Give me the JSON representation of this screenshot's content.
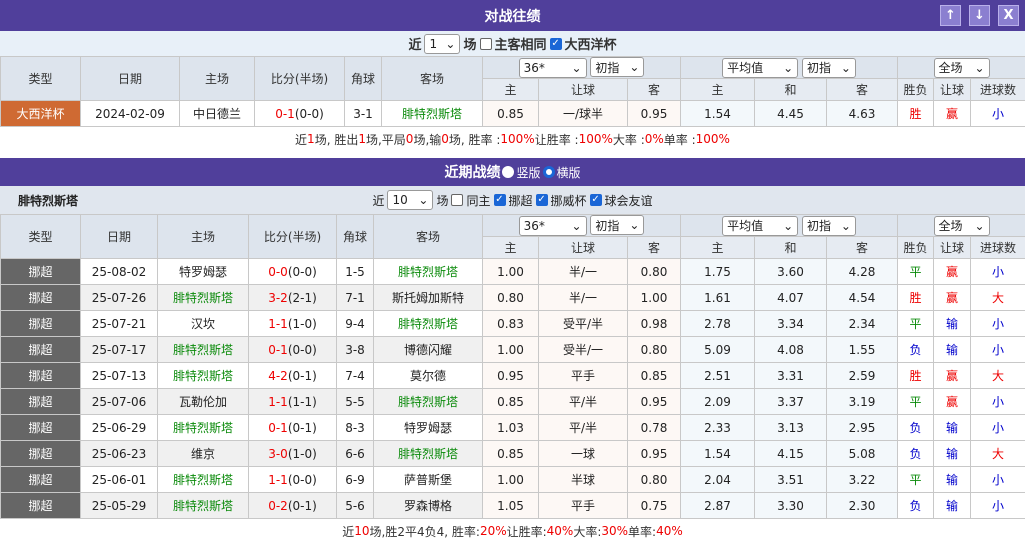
{
  "h2h": {
    "title": "对战往绩",
    "btn_up": "↑",
    "btn_down": "↓",
    "btn_close": "X",
    "filter": {
      "prefix": "近",
      "count": "1",
      "suffix": "场",
      "same_home": "主客相同",
      "same_home_checked": false,
      "league": "大西洋杯",
      "league_checked": true
    },
    "headers": {
      "type": "类型",
      "date": "日期",
      "home": "主场",
      "score": "比分(半场)",
      "corner": "角球",
      "away": "客场",
      "company": "36*",
      "asia_mode": "初指",
      "euro_company": "平均值",
      "euro_mode": "初指",
      "scope": "全场",
      "a_home": "主",
      "a_line": "让球",
      "a_away": "客",
      "e_home": "主",
      "e_draw": "和",
      "e_away": "客",
      "result": "胜负",
      "handicap": "让球",
      "goals": "进球数"
    },
    "rows": [
      {
        "type": "大西洋杯",
        "date": "2024-02-09",
        "home": "中日德兰",
        "score": "0-1",
        "half": "(0-0)",
        "corner": "3-1",
        "away": "腓特烈斯塔",
        "ah": "0.85",
        "line": "一/球半",
        "aa": "0.95",
        "eh": "1.54",
        "ed": "4.45",
        "ea": "4.63",
        "res": "胜",
        "hc": "赢",
        "goal": "小"
      }
    ],
    "summary": [
      [
        "近 ",
        ""
      ],
      [
        "1",
        "r"
      ],
      [
        " 场, 胜出 ",
        ""
      ],
      [
        "1",
        "r"
      ],
      [
        " 场,平局 ",
        ""
      ],
      [
        "0",
        "r"
      ],
      [
        " 场,输 ",
        ""
      ],
      [
        "0",
        "r"
      ],
      [
        " 场, 胜率 : ",
        ""
      ],
      [
        "100%",
        "r"
      ],
      [
        " 让胜率 : ",
        ""
      ],
      [
        "100%",
        "r"
      ],
      [
        " 大率 : ",
        ""
      ],
      [
        "0%",
        "r"
      ],
      [
        " 单率 : ",
        ""
      ],
      [
        "100%",
        "r"
      ]
    ]
  },
  "recent": {
    "title": "近期战绩",
    "opt_vertical": "竖版",
    "opt_horizontal": "横版",
    "selected": "横版",
    "team": "腓特烈斯塔",
    "filter": {
      "prefix": "近",
      "count": "10",
      "suffix": "场",
      "same_home": "同主",
      "same_home_checked": false,
      "c1": "挪超",
      "c2": "挪威杯",
      "c3": "球会友谊"
    },
    "rows": [
      {
        "type": "挪超",
        "date": "25-08-02",
        "home": "特罗姆瑟",
        "score": "0-0",
        "half": "(0-0)",
        "corner": "1-5",
        "away": "腓特烈斯塔",
        "ah": "1.00",
        "line": "半/一",
        "aa": "0.80",
        "eh": "1.75",
        "ed": "3.60",
        "ea": "4.28",
        "res": "平",
        "hc": "赢",
        "goal": "小"
      },
      {
        "type": "挪超",
        "date": "25-07-26",
        "home": "腓特烈斯塔",
        "score": "3-2",
        "half": "(2-1)",
        "corner": "7-1",
        "away": "斯托姆加斯特",
        "ah": "0.80",
        "line": "半/一",
        "aa": "1.00",
        "eh": "1.61",
        "ed": "4.07",
        "ea": "4.54",
        "res": "胜",
        "hc": "赢",
        "goal": "大"
      },
      {
        "type": "挪超",
        "date": "25-07-21",
        "home": "汉坎",
        "score": "1-1",
        "half": "(1-0)",
        "corner": "9-4",
        "away": "腓特烈斯塔",
        "ah": "0.83",
        "line": "受平/半",
        "aa": "0.98",
        "eh": "2.78",
        "ed": "3.34",
        "ea": "2.34",
        "res": "平",
        "hc": "输",
        "goal": "小"
      },
      {
        "type": "挪超",
        "date": "25-07-17",
        "home": "腓特烈斯塔",
        "score": "0-1",
        "half": "(0-0)",
        "corner": "3-8",
        "away": "博德闪耀",
        "ah": "1.00",
        "line": "受半/一",
        "aa": "0.80",
        "eh": "5.09",
        "ed": "4.08",
        "ea": "1.55",
        "res": "负",
        "hc": "输",
        "goal": "小"
      },
      {
        "type": "挪超",
        "date": "25-07-13",
        "home": "腓特烈斯塔",
        "score": "4-2",
        "half": "(0-1)",
        "corner": "7-4",
        "away": "莫尔德",
        "ah": "0.95",
        "line": "平手",
        "aa": "0.85",
        "eh": "2.51",
        "ed": "3.31",
        "ea": "2.59",
        "res": "胜",
        "hc": "赢",
        "goal": "大"
      },
      {
        "type": "挪超",
        "date": "25-07-06",
        "home": "瓦勒伦加",
        "score": "1-1",
        "half": "(1-1)",
        "corner": "5-5",
        "away": "腓特烈斯塔",
        "ah": "0.85",
        "line": "平/半",
        "aa": "0.95",
        "eh": "2.09",
        "ed": "3.37",
        "ea": "3.19",
        "res": "平",
        "hc": "赢",
        "goal": "小"
      },
      {
        "type": "挪超",
        "date": "25-06-29",
        "home": "腓特烈斯塔",
        "score": "0-1",
        "half": "(0-1)",
        "corner": "8-3",
        "away": "特罗姆瑟",
        "ah": "1.03",
        "line": "平/半",
        "aa": "0.78",
        "eh": "2.33",
        "ed": "3.13",
        "ea": "2.95",
        "res": "负",
        "hc": "输",
        "goal": "小"
      },
      {
        "type": "挪超",
        "date": "25-06-23",
        "home": "维京",
        "score": "3-0",
        "half": "(1-0)",
        "corner": "6-6",
        "away": "腓特烈斯塔",
        "ah": "0.85",
        "line": "一球",
        "aa": "0.95",
        "eh": "1.54",
        "ed": "4.15",
        "ea": "5.08",
        "res": "负",
        "hc": "输",
        "goal": "大"
      },
      {
        "type": "挪超",
        "date": "25-06-01",
        "home": "腓特烈斯塔",
        "score": "1-1",
        "half": "(0-0)",
        "corner": "6-9",
        "away": "萨普斯堡",
        "ah": "1.00",
        "line": "半球",
        "aa": "0.80",
        "eh": "2.04",
        "ed": "3.51",
        "ea": "3.22",
        "res": "平",
        "hc": "输",
        "goal": "小"
      },
      {
        "type": "挪超",
        "date": "25-05-29",
        "home": "腓特烈斯塔",
        "score": "0-2",
        "half": "(0-1)",
        "corner": "5-6",
        "away": "罗森博格",
        "ah": "1.05",
        "line": "平手",
        "aa": "0.75",
        "eh": "2.87",
        "ed": "3.30",
        "ea": "2.30",
        "res": "负",
        "hc": "输",
        "goal": "小"
      }
    ],
    "summary": [
      [
        "近",
        ""
      ],
      [
        "10",
        "r"
      ],
      [
        "场,胜2平4负4, 胜率:",
        ""
      ],
      [
        "20%",
        "r"
      ],
      [
        " 让胜率:",
        ""
      ],
      [
        "40%",
        "r"
      ],
      [
        " 大率:",
        ""
      ],
      [
        "30%",
        "r"
      ],
      [
        " 单率:",
        ""
      ],
      [
        "40%",
        "r"
      ]
    ]
  },
  "colors": {
    "header_bar": "#503f9b",
    "focus_team": "#0a8a0a",
    "win": "#e00000",
    "loss": "#0000cc",
    "draw": "#0a8a0a",
    "cup_type": "#cf6a33",
    "league_type": "#666666"
  }
}
